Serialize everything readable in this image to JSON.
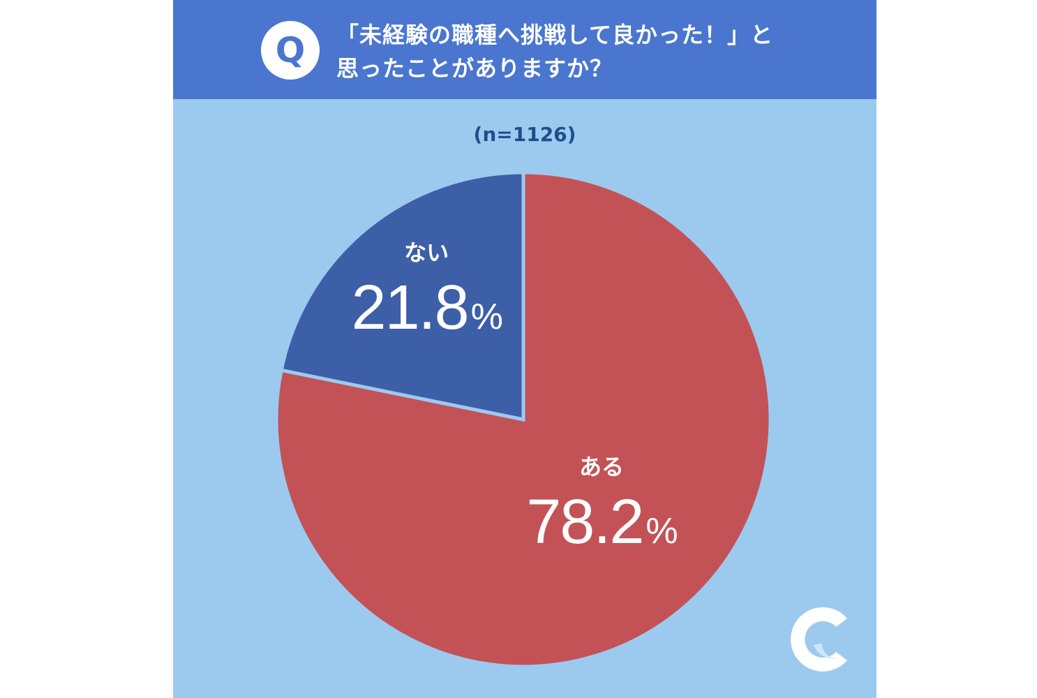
{
  "header": {
    "badge": "Q",
    "question_line1": "「未経験の職種へ挑戦して良かった！」と",
    "question_line2": "思ったことがありますか？"
  },
  "chart_data": {
    "type": "pie",
    "sample_label": "(n=1126)",
    "slices": [
      {
        "label": "ある",
        "value": 78.2,
        "value_text": "78.2",
        "color": "#c35257"
      },
      {
        "label": "ない",
        "value": 21.8,
        "value_text": "21.8",
        "color": "#3d5fa8"
      }
    ],
    "unit": "%",
    "start": "12 o'clock",
    "direction": "clockwise"
  },
  "colors": {
    "background": "#9ccaef",
    "header": "#4a76cf",
    "label_text": "#ffffff",
    "sample_text": "#1f4e8c"
  },
  "logo": {
    "icon": "brand-c-icon"
  }
}
